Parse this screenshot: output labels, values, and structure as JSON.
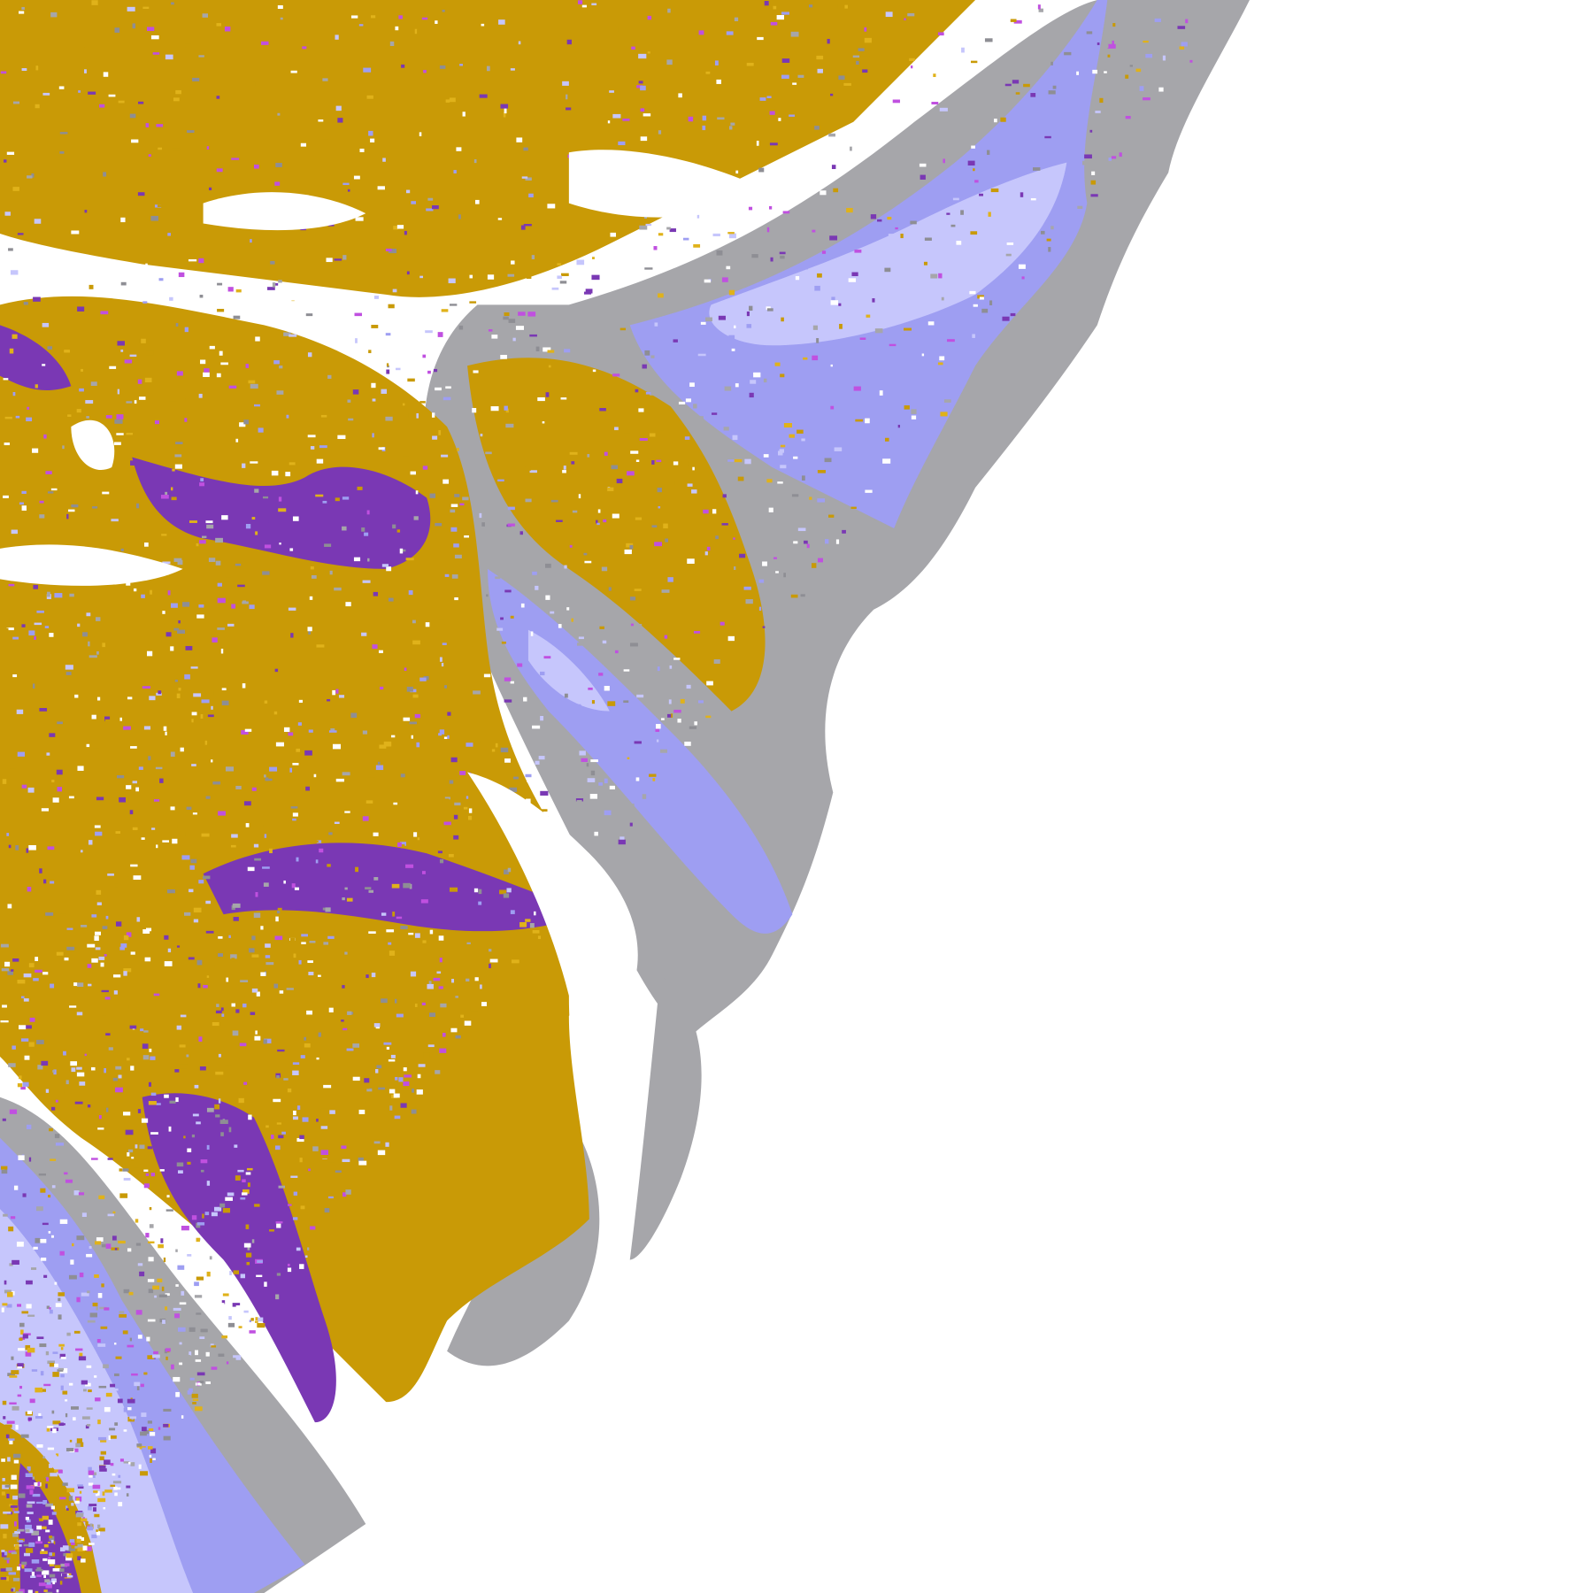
{
  "map": {
    "background": "#ffffff",
    "colors": {
      "gold": "#c99a06",
      "gold_light": "#e0b21a",
      "purple": "#7a38b4",
      "magenta": "#c050e0",
      "gray": "#a6a6aa",
      "gray_dark": "#8e8e94",
      "blue": "#9e9ef2",
      "lavender": "#c6c6fc",
      "pale": "#e4e4ff"
    }
  }
}
